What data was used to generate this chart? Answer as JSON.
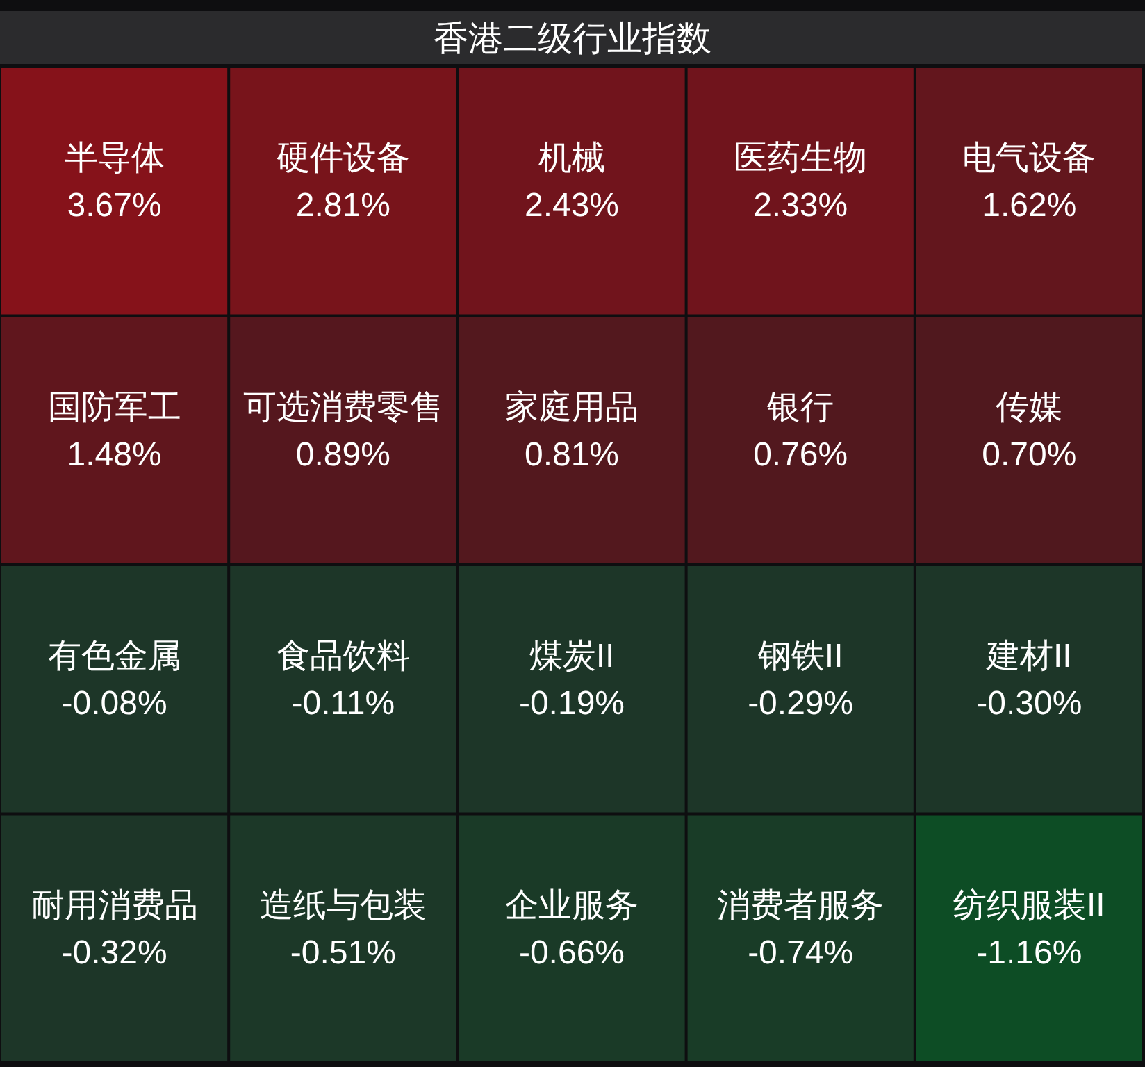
{
  "chart_data": {
    "type": "other",
    "title": "香港二级行业指数",
    "categories": [
      "半导体",
      "硬件设备",
      "机械",
      "医药生物",
      "电气设备",
      "国防军工",
      "可选消费零售",
      "家庭用品",
      "银行",
      "传媒",
      "有色金属",
      "食品饮料",
      "煤炭II",
      "钢铁II",
      "建材II",
      "耐用消费品",
      "造纸与包装",
      "企业服务",
      "消费者服务",
      "纺织服装II"
    ],
    "values": [
      3.67,
      2.81,
      2.43,
      2.33,
      1.62,
      1.48,
      0.89,
      0.81,
      0.76,
      0.7,
      -0.08,
      -0.11,
      -0.19,
      -0.29,
      -0.3,
      -0.32,
      -0.51,
      -0.66,
      -0.74,
      -1.16
    ],
    "value_labels": [
      "3.67%",
      "2.81%",
      "2.43%",
      "2.33%",
      "1.62%",
      "1.48%",
      "0.89%",
      "0.81%",
      "0.76%",
      "0.70%",
      "-0.08%",
      "-0.11%",
      "-0.19%",
      "-0.29%",
      "-0.30%",
      "-0.32%",
      "-0.51%",
      "-0.66%",
      "-0.74%",
      "-1.16%"
    ]
  }
}
